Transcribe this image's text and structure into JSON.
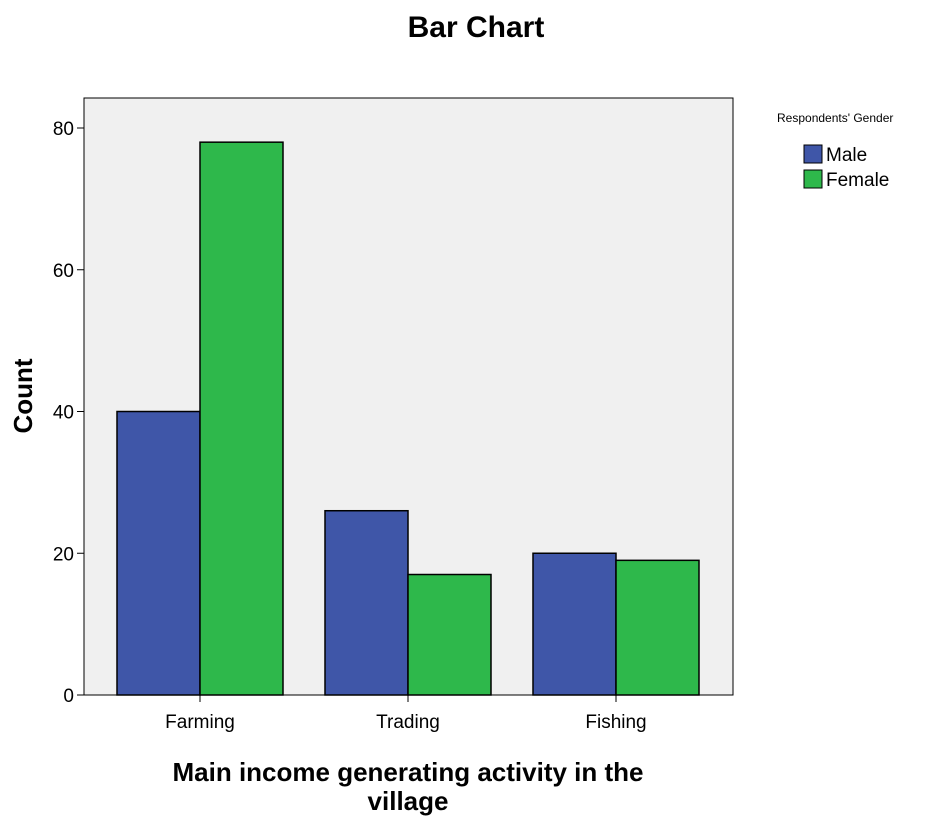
{
  "chart_data": {
    "type": "bar",
    "title": "Bar Chart",
    "xlabel": "Main income generating activity in the village",
    "xlabel_lines": [
      "Main income generating activity in the",
      "village"
    ],
    "ylabel": "Count",
    "categories": [
      "Farming",
      "Trading",
      "Fishing"
    ],
    "series": [
      {
        "name": "Male",
        "values": [
          40,
          26,
          20
        ],
        "color": "#3f56a8"
      },
      {
        "name": "Female",
        "values": [
          78,
          17,
          19
        ],
        "color": "#2eb84b"
      }
    ],
    "ylim": [
      0,
      80
    ],
    "yticks": [
      0,
      20,
      40,
      60,
      80
    ],
    "legend": {
      "title": "Respondents' Gender",
      "position": "top-right, outside plot"
    },
    "grid": false,
    "plot_background": "#f0f0f0"
  }
}
